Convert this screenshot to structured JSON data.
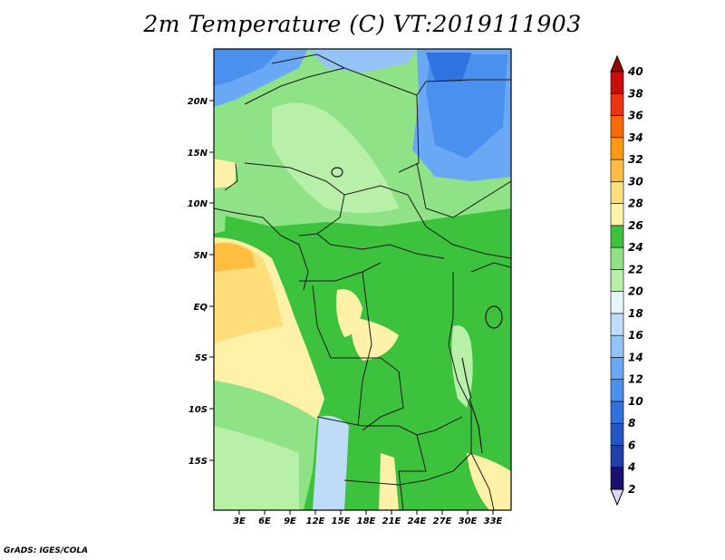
{
  "title": "2m Temperature (C) VT:2019111903",
  "credit": "GrADS: IGES/COLA",
  "lat_ticks": [
    "20N",
    "15N",
    "10N",
    "5N",
    "EQ",
    "5S",
    "10S",
    "15S"
  ],
  "lon_ticks": [
    "3E",
    "6E",
    "9E",
    "12E",
    "15E",
    "18E",
    "21E",
    "24E",
    "27E",
    "30E",
    "33E"
  ],
  "colorbar": {
    "labels": [
      "2",
      "4",
      "6",
      "8",
      "10",
      "12",
      "14",
      "16",
      "18",
      "20",
      "22",
      "24",
      "26",
      "28",
      "30",
      "32",
      "34",
      "36",
      "38",
      "40"
    ],
    "colors": [
      "#1a1070",
      "#1f3faa",
      "#2456c8",
      "#2f72e0",
      "#4a90ef",
      "#6aa8f5",
      "#93c3f7",
      "#bedcf7",
      "#e6f7fb",
      "#b9f0a9",
      "#8fe285",
      "#3dc23d",
      "#fff2a8",
      "#ffdd7a",
      "#ffbe40",
      "#ff9a10",
      "#ff6a00",
      "#ee3310",
      "#cc0d0d",
      "#9c0000"
    ],
    "under_color": "#e0d8f5",
    "over_color": "#9c0000"
  }
}
